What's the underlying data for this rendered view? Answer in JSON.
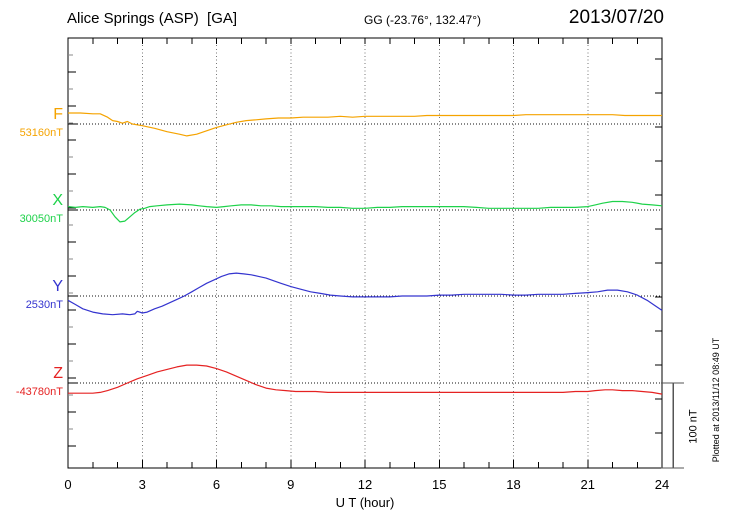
{
  "header": {
    "station": "Alice Springs (ASP)  [GA]",
    "coords": "GG (-23.76°, 132.47°)",
    "date": "2013/07/20"
  },
  "axis": {
    "x_label": "U T (hour)",
    "x_tick_labels": [
      "0",
      "3",
      "6",
      "9",
      "12",
      "15",
      "18",
      "21",
      "24"
    ]
  },
  "components": [
    {
      "letter": "F",
      "value": "53160nT",
      "color": "#F5A300"
    },
    {
      "letter": "X",
      "value": "30050nT",
      "color": "#1ED24A"
    },
    {
      "letter": "Y",
      "value": "2530nT",
      "color": "#3434CF"
    },
    {
      "letter": "Z",
      "value": "-43780nT",
      "color": "#E52222"
    }
  ],
  "scale_bar": {
    "label": "100 nT",
    "nT": 100
  },
  "footer": {
    "plotted_note": "Plotted at 2013/11/12 08:49 UT"
  },
  "chart_data": {
    "type": "line",
    "title": "Alice Springs (ASP) [GA] magnetogram, 2013/07/20",
    "xlabel": "U T (hour)",
    "x_range": [
      0,
      24
    ],
    "x_major_ticks": [
      0,
      3,
      6,
      9,
      12,
      15,
      18,
      21,
      24
    ],
    "grid": "dotted vertical lines every 3 h; dotted horizontal baseline per component",
    "legend_position": "left margin labels",
    "scale_bar_nT": 100,
    "series": [
      {
        "name": "F",
        "baseline_nT": 53160,
        "units": "nT deviation from baseline",
        "points": [
          [
            0,
            13
          ],
          [
            0.5,
            13
          ],
          [
            1,
            12
          ],
          [
            1.3,
            12
          ],
          [
            1.6,
            8
          ],
          [
            1.8,
            4
          ],
          [
            2,
            3
          ],
          [
            2.2,
            1
          ],
          [
            2.4,
            3
          ],
          [
            2.6,
            0
          ],
          [
            3,
            -2
          ],
          [
            3.5,
            -5
          ],
          [
            4,
            -9
          ],
          [
            4.5,
            -12
          ],
          [
            4.8,
            -14
          ],
          [
            5.2,
            -12
          ],
          [
            5.6,
            -8
          ],
          [
            6,
            -4
          ],
          [
            6.4,
            -1
          ],
          [
            6.8,
            2
          ],
          [
            7.2,
            4
          ],
          [
            7.6,
            5
          ],
          [
            8,
            6
          ],
          [
            8.5,
            7
          ],
          [
            9,
            7
          ],
          [
            9.5,
            8
          ],
          [
            10,
            8
          ],
          [
            10.5,
            8
          ],
          [
            11,
            9
          ],
          [
            11.5,
            8
          ],
          [
            12,
            9
          ],
          [
            12.5,
            9
          ],
          [
            13,
            9
          ],
          [
            13.5,
            9
          ],
          [
            14,
            9
          ],
          [
            14.5,
            10
          ],
          [
            15,
            10
          ],
          [
            15.5,
            10
          ],
          [
            16,
            10
          ],
          [
            16.5,
            10
          ],
          [
            17,
            10
          ],
          [
            17.5,
            10
          ],
          [
            18,
            10
          ],
          [
            18.5,
            11
          ],
          [
            19,
            11
          ],
          [
            19.5,
            11
          ],
          [
            20,
            11
          ],
          [
            20.5,
            11
          ],
          [
            21,
            11
          ],
          [
            21.5,
            11
          ],
          [
            22,
            11
          ],
          [
            22.5,
            10
          ],
          [
            23,
            10
          ],
          [
            23.5,
            10
          ],
          [
            24,
            10
          ]
        ]
      },
      {
        "name": "X",
        "baseline_nT": 30050,
        "units": "nT deviation from baseline",
        "points": [
          [
            0,
            4
          ],
          [
            0.3,
            3
          ],
          [
            0.6,
            4
          ],
          [
            1,
            3
          ],
          [
            1.3,
            4
          ],
          [
            1.5,
            3
          ],
          [
            1.7,
            0
          ],
          [
            1.9,
            -8
          ],
          [
            2.1,
            -14
          ],
          [
            2.3,
            -13
          ],
          [
            2.5,
            -8
          ],
          [
            2.7,
            -3
          ],
          [
            2.9,
            1
          ],
          [
            3.1,
            2
          ],
          [
            3.3,
            4
          ],
          [
            3.6,
            5
          ],
          [
            4,
            6
          ],
          [
            4.5,
            7
          ],
          [
            5,
            6
          ],
          [
            5.3,
            5
          ],
          [
            5.6,
            4
          ],
          [
            6,
            3
          ],
          [
            6.3,
            4
          ],
          [
            6.6,
            5
          ],
          [
            7,
            6
          ],
          [
            7.4,
            6
          ],
          [
            7.8,
            5
          ],
          [
            8.2,
            5
          ],
          [
            8.6,
            4
          ],
          [
            9,
            4
          ],
          [
            9.5,
            4
          ],
          [
            10,
            4
          ],
          [
            10.5,
            3
          ],
          [
            11,
            3
          ],
          [
            11.5,
            2
          ],
          [
            12,
            2
          ],
          [
            12.5,
            3
          ],
          [
            13,
            3
          ],
          [
            13.5,
            4
          ],
          [
            14,
            4
          ],
          [
            14.5,
            4
          ],
          [
            15,
            4
          ],
          [
            15.5,
            4
          ],
          [
            16,
            4
          ],
          [
            16.5,
            3
          ],
          [
            17,
            2
          ],
          [
            17.5,
            2
          ],
          [
            18,
            2
          ],
          [
            18.5,
            2
          ],
          [
            19,
            2
          ],
          [
            19.5,
            3
          ],
          [
            20,
            3
          ],
          [
            20.5,
            3
          ],
          [
            21,
            4
          ],
          [
            21.3,
            6
          ],
          [
            21.6,
            8
          ],
          [
            22,
            10
          ],
          [
            22.4,
            10
          ],
          [
            22.8,
            9
          ],
          [
            23.2,
            7
          ],
          [
            23.6,
            6
          ],
          [
            24,
            5
          ]
        ]
      },
      {
        "name": "Y",
        "baseline_nT": 2530,
        "units": "nT deviation from baseline",
        "points": [
          [
            0,
            -5
          ],
          [
            0.3,
            -10
          ],
          [
            0.6,
            -15
          ],
          [
            1,
            -19
          ],
          [
            1.4,
            -21
          ],
          [
            1.8,
            -22
          ],
          [
            2.2,
            -21
          ],
          [
            2.5,
            -22
          ],
          [
            2.7,
            -21
          ],
          [
            2.8,
            -18
          ],
          [
            3,
            -20
          ],
          [
            3.2,
            -19
          ],
          [
            3.5,
            -15
          ],
          [
            3.8,
            -12
          ],
          [
            4.1,
            -8
          ],
          [
            4.4,
            -4
          ],
          [
            4.7,
            0
          ],
          [
            5,
            5
          ],
          [
            5.3,
            10
          ],
          [
            5.6,
            15
          ],
          [
            5.9,
            19
          ],
          [
            6.2,
            23
          ],
          [
            6.5,
            26
          ],
          [
            6.8,
            27
          ],
          [
            7.1,
            26
          ],
          [
            7.4,
            25
          ],
          [
            7.7,
            23
          ],
          [
            8,
            21
          ],
          [
            8.3,
            18
          ],
          [
            8.6,
            15
          ],
          [
            9,
            11
          ],
          [
            9.4,
            8
          ],
          [
            9.8,
            5
          ],
          [
            10.2,
            3
          ],
          [
            10.6,
            1
          ],
          [
            11,
            0
          ],
          [
            11.5,
            -1
          ],
          [
            12,
            -1
          ],
          [
            12.5,
            -1
          ],
          [
            13,
            -1
          ],
          [
            13.5,
            0
          ],
          [
            14,
            0
          ],
          [
            14.5,
            0
          ],
          [
            15,
            1
          ],
          [
            15.5,
            1
          ],
          [
            16,
            2
          ],
          [
            16.5,
            2
          ],
          [
            17,
            2
          ],
          [
            17.5,
            2
          ],
          [
            18,
            1
          ],
          [
            18.5,
            1
          ],
          [
            19,
            2
          ],
          [
            19.5,
            2
          ],
          [
            20,
            2
          ],
          [
            20.5,
            3
          ],
          [
            21,
            4
          ],
          [
            21.4,
            5
          ],
          [
            21.8,
            7
          ],
          [
            22.2,
            7
          ],
          [
            22.6,
            5
          ],
          [
            23,
            1
          ],
          [
            23.4,
            -5
          ],
          [
            23.7,
            -11
          ],
          [
            24,
            -17
          ]
        ]
      },
      {
        "name": "Z",
        "baseline_nT": -43780,
        "units": "nT deviation from baseline",
        "points": [
          [
            0,
            -12
          ],
          [
            0.5,
            -12
          ],
          [
            1,
            -12
          ],
          [
            1.3,
            -11
          ],
          [
            1.6,
            -9
          ],
          [
            2,
            -5
          ],
          [
            2.4,
            0
          ],
          [
            2.8,
            5
          ],
          [
            3.2,
            9
          ],
          [
            3.6,
            13
          ],
          [
            4,
            16
          ],
          [
            4.4,
            19
          ],
          [
            4.8,
            21
          ],
          [
            5.2,
            21
          ],
          [
            5.6,
            20
          ],
          [
            6,
            17
          ],
          [
            6.4,
            13
          ],
          [
            6.8,
            8
          ],
          [
            7.2,
            3
          ],
          [
            7.6,
            -2
          ],
          [
            8,
            -6
          ],
          [
            8.4,
            -8
          ],
          [
            8.8,
            -9
          ],
          [
            9.2,
            -10
          ],
          [
            9.6,
            -10
          ],
          [
            10,
            -10
          ],
          [
            10.5,
            -11
          ],
          [
            11,
            -11
          ],
          [
            11.5,
            -11
          ],
          [
            12,
            -11
          ],
          [
            12.5,
            -11
          ],
          [
            13,
            -11
          ],
          [
            13.5,
            -11
          ],
          [
            14,
            -11
          ],
          [
            14.5,
            -11
          ],
          [
            15,
            -11
          ],
          [
            15.5,
            -11
          ],
          [
            16,
            -11
          ],
          [
            16.5,
            -11
          ],
          [
            17,
            -11
          ],
          [
            17.5,
            -11
          ],
          [
            18,
            -11
          ],
          [
            18.5,
            -11
          ],
          [
            19,
            -11
          ],
          [
            19.5,
            -11
          ],
          [
            20,
            -11
          ],
          [
            20.5,
            -10
          ],
          [
            21,
            -10
          ],
          [
            21.3,
            -9
          ],
          [
            21.7,
            -8
          ],
          [
            22,
            -8
          ],
          [
            22.4,
            -9
          ],
          [
            22.8,
            -9
          ],
          [
            23.2,
            -10
          ],
          [
            23.6,
            -11
          ],
          [
            24,
            -13
          ]
        ]
      }
    ]
  }
}
